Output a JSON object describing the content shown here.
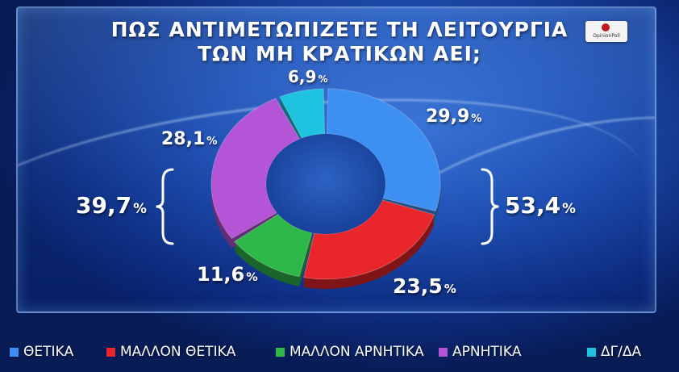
{
  "title_line1": "ΠΩΣ ΑΝΤΙΜΕΤΩΠΙΖΕΤΕ ΤΗ ΛΕΙΤΟΥΡΓΙΑ",
  "title_line2": "ΤΩΝ ΜΗ ΚΡΑΤΙΚΩΝ ΑΕΙ;",
  "logo_text": "OpinionPoll",
  "chart_data": {
    "type": "pie",
    "subtype": "donut",
    "title": "ΠΩΣ ΑΝΤΙΜΕΤΩΠΙΖΕΤΕ ΤΗ ΛΕΙΤΟΥΡΓΙΑ ΤΩΝ ΜΗ ΚΡΑΤΙΚΩΝ ΑΕΙ;",
    "unit": "%",
    "legend_position": "bottom",
    "slices": [
      {
        "name": "ΘΕΤΙΚΑ",
        "value": 29.9,
        "label": "29,9",
        "color": "#3d8ff2"
      },
      {
        "name": "ΜΑΛΛΟΝ ΘΕΤΙΚΑ",
        "value": 23.5,
        "label": "23,5",
        "color": "#e8262c"
      },
      {
        "name": "ΜΑΛΛΟΝ ΑΡΝΗΤΙΚΑ",
        "value": 11.6,
        "label": "11,6",
        "color": "#2fb84a"
      },
      {
        "name": "ΑΡΝΗΤΙΚΑ",
        "value": 28.1,
        "label": "28,1",
        "color": "#b454d6"
      },
      {
        "name": "ΔΓ/ΔΑ",
        "value": 6.9,
        "label": "6,9",
        "color": "#1ec3e0"
      }
    ],
    "groups": [
      {
        "label": "53,4",
        "members": [
          "ΘΕΤΙΚΑ",
          "ΜΑΛΛΟΝ ΘΕΤΙΚΑ"
        ]
      },
      {
        "label": "39,7",
        "members": [
          "ΜΑΛΛΟΝ ΑΡΝΗΤΙΚΑ",
          "ΑΡΝΗΤΙΚΑ"
        ]
      }
    ]
  }
}
